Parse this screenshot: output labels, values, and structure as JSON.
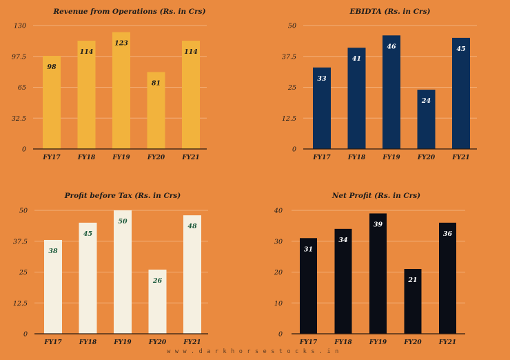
{
  "chart_data": [
    {
      "type": "bar",
      "title": "Revenue from Operations (Rs. in Crs)",
      "categories": [
        "FY17",
        "FY18",
        "FY19",
        "FY20",
        "FY21"
      ],
      "values": [
        98,
        114,
        123,
        81,
        114
      ],
      "ylim": [
        0,
        130
      ],
      "yticks": [
        "0",
        "32.5",
        "65",
        "97.5",
        "130"
      ],
      "color": "#f2b33d",
      "label_color": "#1b1b1b",
      "grid": true
    },
    {
      "type": "bar",
      "title": "EBIDTA (Rs. in Crs)",
      "categories": [
        "FY17",
        "FY18",
        "FY19",
        "FY20",
        "FY21"
      ],
      "values": [
        33,
        41,
        46,
        24,
        45
      ],
      "ylim": [
        0,
        50
      ],
      "yticks": [
        "0",
        "12.5",
        "25",
        "37.5",
        "50"
      ],
      "color": "#0c2f59",
      "label_color": "#ffffff",
      "grid": true
    },
    {
      "type": "bar",
      "title": "Profit before Tax (Rs. in Crs)",
      "categories": [
        "FY17",
        "FY18",
        "FY19",
        "FY20",
        "FY21"
      ],
      "values": [
        38,
        45,
        50,
        26,
        48
      ],
      "ylim": [
        0,
        50
      ],
      "yticks": [
        "0",
        "12.5",
        "25",
        "37.5",
        "50"
      ],
      "color": "#f5f0e1",
      "label_color": "#1d5a3c",
      "grid": true
    },
    {
      "type": "bar",
      "title": "Net Profit (Rs. in Crs)",
      "categories": [
        "FY17",
        "FY18",
        "FY19",
        "FY20",
        "FY21"
      ],
      "values": [
        31,
        34,
        39,
        21,
        36
      ],
      "ylim": [
        0,
        40
      ],
      "yticks": [
        "0",
        "10",
        "20",
        "30",
        "40"
      ],
      "color": "#0a0d16",
      "label_color": "#ffffff",
      "grid": true
    }
  ],
  "footer": "www.darkhorsestocks.in"
}
